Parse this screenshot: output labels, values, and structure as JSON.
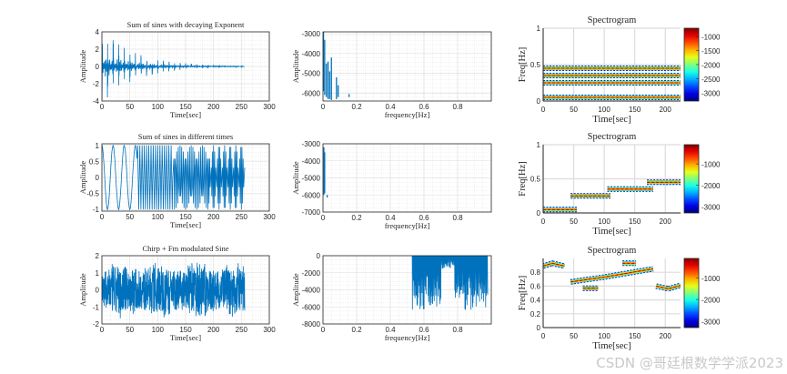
{
  "watermark": "CSDN @哥廷根数学学派2023",
  "line_color": "#0072BD",
  "chart_data": [
    {
      "id": "p1_time",
      "type": "line",
      "title": "Sum of sines with decaying Exponent",
      "xlabel": "Time[sec]",
      "ylabel": "Amplitude",
      "xlim": [
        0,
        300
      ],
      "ylim": [
        -4,
        4
      ],
      "xticks": [
        0,
        50,
        100,
        150,
        200,
        250,
        300
      ],
      "yticks": [
        -4,
        -2,
        0,
        2,
        4
      ],
      "grid": true,
      "signal": {
        "kind": "decaying_bursts",
        "duration": 255,
        "burst_period": 10,
        "peak_amplitude": 3.5,
        "decay_time": 60,
        "step": 0.25
      }
    },
    {
      "id": "p1_freq",
      "type": "line",
      "title": "",
      "xlabel": "frequency[Hz]",
      "ylabel": "Amplitude",
      "xlim": [
        0,
        1
      ],
      "ylim": [
        -6400,
        -2900
      ],
      "xticks": [
        0.2,
        0.4,
        0.6,
        0.8
      ],
      "xticks_zero": [
        0
      ],
      "yticks": [
        -6000,
        -5000,
        -4000,
        -3000
      ],
      "grid": true,
      "stems": [
        [
          0.003,
          -5900,
          -2900
        ],
        [
          0.01,
          -6100,
          -3300
        ],
        [
          0.02,
          -6200,
          -4500
        ],
        [
          0.03,
          -6300,
          -4400
        ],
        [
          0.04,
          -6300,
          -4900
        ],
        [
          0.05,
          -6350,
          -4200
        ],
        [
          0.08,
          -6300,
          -5200
        ],
        [
          0.09,
          -6200,
          -5600
        ],
        [
          0.155,
          -6200,
          -6050
        ]
      ]
    },
    {
      "id": "p1_spec",
      "type": "heatmap",
      "title": "Spectrogram",
      "xlabel": "Time[sec]",
      "ylabel": "Freq[Hz]",
      "xlim": [
        0,
        225
      ],
      "ylim": [
        0,
        1
      ],
      "xticks": [
        0,
        50,
        100,
        150,
        200
      ],
      "yticks": [
        0,
        0.5,
        1
      ],
      "colorbar": {
        "range": [
          -3300,
          -700
        ],
        "ticks": [
          -1000,
          -1500,
          -2000,
          -2500,
          -3000
        ]
      },
      "tracks": [
        [
          [
            0,
            0.05
          ],
          [
            225,
            0.05
          ]
        ],
        [
          [
            0,
            0.25
          ],
          [
            225,
            0.25
          ]
        ],
        [
          [
            0,
            0.35
          ],
          [
            225,
            0.35
          ]
        ],
        [
          [
            0,
            0.45
          ],
          [
            225,
            0.45
          ]
        ]
      ]
    },
    {
      "id": "p2_time",
      "type": "line",
      "title": "Sum of sines in different times",
      "xlabel": "Time[sec]",
      "ylabel": "Amplitude",
      "xlim": [
        0,
        300
      ],
      "ylim": [
        -1.05,
        1.05
      ],
      "xticks": [
        0,
        50,
        100,
        150,
        200,
        250,
        300
      ],
      "yticks": [
        -1,
        -0.5,
        0,
        0.5,
        1
      ],
      "grid": true,
      "signal": {
        "kind": "piecewise_sines",
        "segments": [
          [
            0,
            64,
            0.05
          ],
          [
            64,
            128,
            0.25
          ],
          [
            128,
            192,
            0.35
          ],
          [
            192,
            256,
            0.45
          ]
        ],
        "step": 1
      }
    },
    {
      "id": "p2_freq",
      "type": "line",
      "title": "",
      "xlabel": "frequency[Hz]",
      "ylabel": "Amplitude",
      "xlim": [
        0,
        1
      ],
      "ylim": [
        -7000,
        -3000
      ],
      "xticks": [
        0.2,
        0.4,
        0.6,
        0.8
      ],
      "xticks_zero": [
        0
      ],
      "yticks": [
        -7000,
        -6000,
        -5000,
        -4000,
        -3000
      ],
      "grid": true,
      "stems": [
        [
          0.005,
          -6000,
          -3200
        ],
        [
          0.01,
          -5900,
          -3500
        ],
        [
          0.025,
          -6150,
          -6000
        ]
      ]
    },
    {
      "id": "p2_spec",
      "type": "heatmap",
      "title": "Spectrogram",
      "xlabel": "Time[sec]",
      "ylabel": "Freq[Hz]",
      "xlim": [
        0,
        225
      ],
      "ylim": [
        0,
        1
      ],
      "xticks": [
        0,
        50,
        100,
        150,
        200
      ],
      "yticks": [
        0,
        0.5,
        1
      ],
      "colorbar": {
        "range": [
          -3300,
          -100
        ],
        "ticks": [
          -1000,
          -2000,
          -3000
        ]
      },
      "tracks": [
        [
          [
            0,
            0.05
          ],
          [
            55,
            0.05
          ]
        ],
        [
          [
            45,
            0.25
          ],
          [
            110,
            0.25
          ]
        ],
        [
          [
            105,
            0.35
          ],
          [
            180,
            0.35
          ]
        ],
        [
          [
            170,
            0.45
          ],
          [
            225,
            0.45
          ]
        ]
      ]
    },
    {
      "id": "p3_time",
      "type": "line",
      "title": "Chirp + Fm modulated Sine",
      "xlabel": "Time[sec]",
      "ylabel": "Amplitude",
      "xlim": [
        0,
        300
      ],
      "ylim": [
        -2,
        2
      ],
      "xticks": [
        0,
        50,
        100,
        150,
        200,
        250,
        300
      ],
      "yticks": [
        -2,
        -1,
        0,
        1,
        2
      ],
      "grid": true,
      "signal": {
        "kind": "dense_noise",
        "duration": 256,
        "base_amplitude": 0.9,
        "peak_amplitude": 2,
        "step": 0.25
      }
    },
    {
      "id": "p3_freq",
      "type": "line",
      "title": "",
      "xlabel": "frequency[Hz]",
      "ylabel": "Amplitude",
      "xlim": [
        0,
        1
      ],
      "ylim": [
        -8000,
        0
      ],
      "xticks": [
        0,
        0.2,
        0.4,
        0.6,
        0.8
      ],
      "yticks": [
        -8000,
        -6000,
        -4000,
        -2000,
        0
      ],
      "grid": true,
      "band": {
        "from": 0.53,
        "to": 0.98,
        "floor": -6400,
        "shallow_from": 0.7,
        "shallow_to": 0.78,
        "shallow_floor": -1500
      }
    },
    {
      "id": "p3_spec",
      "type": "heatmap",
      "title": "Spectrogram",
      "xlabel": "Time[sec]",
      "ylabel": "Freq[Hz]",
      "xlim": [
        0,
        225
      ],
      "ylim": [
        0,
        1
      ],
      "xticks": [
        0,
        50,
        100,
        150,
        200
      ],
      "yticks": [
        0,
        0.2,
        0.4,
        0.6,
        0.8
      ],
      "colorbar": {
        "range": [
          -3300,
          -100
        ],
        "ticks": [
          -1000,
          -2000,
          -3000
        ]
      },
      "tracks": [
        [
          [
            0,
            0.89
          ],
          [
            15,
            0.93
          ],
          [
            35,
            0.89
          ]
        ],
        [
          [
            45,
            0.66
          ],
          [
            100,
            0.73
          ],
          [
            180,
            0.85
          ]
        ],
        [
          [
            65,
            0.57
          ],
          [
            90,
            0.57
          ]
        ],
        [
          [
            130,
            0.93
          ],
          [
            152,
            0.93
          ]
        ],
        [
          [
            185,
            0.6
          ],
          [
            205,
            0.56
          ],
          [
            225,
            0.61
          ]
        ]
      ]
    }
  ]
}
